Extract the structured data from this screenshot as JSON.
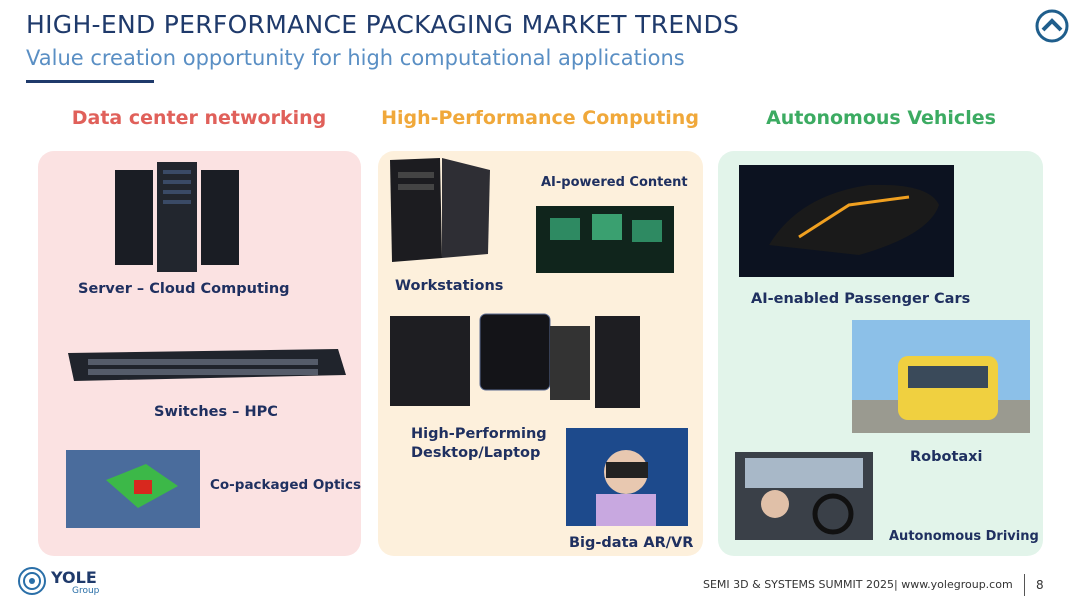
{
  "header": {
    "title": "HIGH-END PERFORMANCE PACKAGING MARKET TRENDS",
    "subtitle": "Value creation opportunity for high computational applications"
  },
  "columns": [
    {
      "heading": "Data center networking",
      "items": [
        "Server – Cloud Computing",
        "Switches – HPC",
        "Co-packaged Optics"
      ]
    },
    {
      "heading": "High-Performance Computing",
      "items": [
        "AI-powered Content",
        "Workstations",
        "High-Performing Desktop/Laptop",
        "Big-data AR/VR"
      ]
    },
    {
      "heading": "Autonomous Vehicles",
      "items": [
        "AI-enabled Passenger Cars",
        "Robotaxi",
        "Autonomous Driving"
      ]
    }
  ],
  "footer": {
    "logo": "YOLE",
    "logo_sub": "Group",
    "text": "SEMI 3D & SYSTEMS SUMMIT 2025| www.yolegroup.com",
    "page": "8"
  }
}
